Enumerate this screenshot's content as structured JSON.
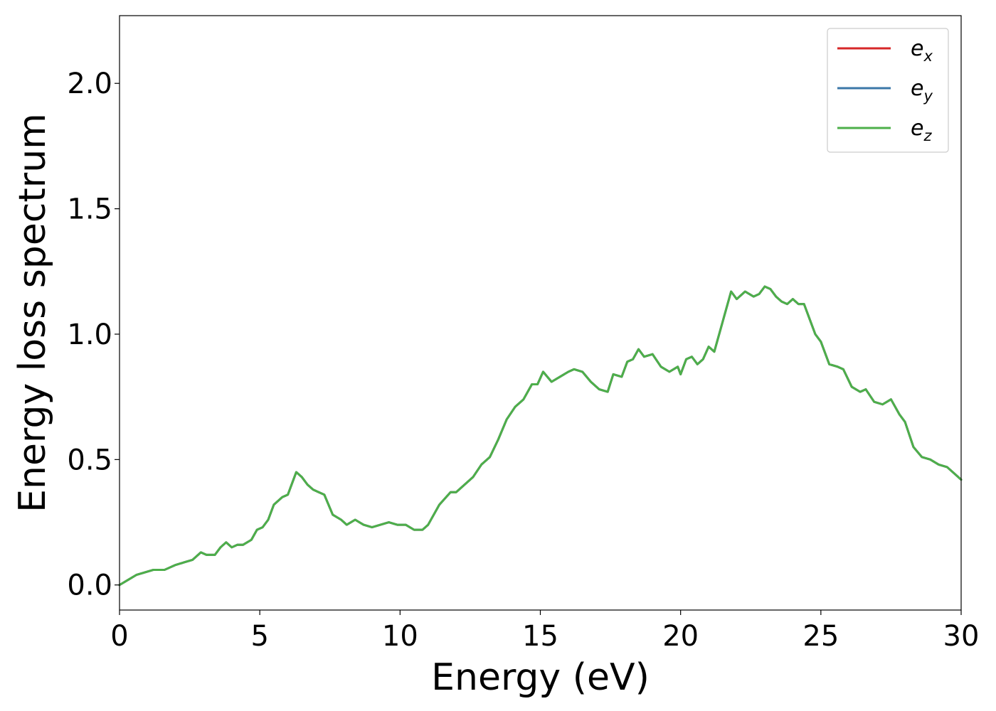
{
  "chart_data": {
    "type": "line",
    "title": "",
    "xlabel": "Energy (eV)",
    "ylabel": "Energy loss spectrum",
    "xlim": [
      0,
      30
    ],
    "ylim": [
      -0.1,
      2.27
    ],
    "xticks": [
      "0",
      "5",
      "10",
      "15",
      "20",
      "25",
      "30"
    ],
    "yticks": [
      "0.0",
      "0.5",
      "1.0",
      "1.5",
      "2.0"
    ],
    "grid": false,
    "legend_position": "top-right",
    "series": [
      {
        "name": "e_x",
        "label_main": "e",
        "label_sub": "x",
        "color": "#d62728",
        "x": [
          0,
          0.3,
          0.6,
          0.9,
          1.2,
          1.6,
          2.0,
          2.3,
          2.6,
          2.9,
          3.1,
          3.4,
          3.6,
          3.8,
          4.0,
          4.2,
          4.4,
          4.7,
          4.9,
          5.1,
          5.3,
          5.5,
          5.8,
          6.0,
          6.2,
          6.3,
          6.5,
          6.7,
          6.9,
          7.1,
          7.3,
          7.6,
          7.9,
          8.1,
          8.4,
          8.7,
          9.0,
          9.3,
          9.6,
          9.9,
          10.2,
          10.5,
          10.8,
          11.0,
          11.4,
          11.8,
          12.0,
          12.3,
          12.6,
          12.9,
          13.2,
          13.5,
          13.8,
          14.1,
          14.4,
          14.7,
          14.9,
          15.1,
          15.4,
          15.7,
          16.0,
          16.2,
          16.5,
          16.8,
          17.1,
          17.4,
          17.6,
          17.9,
          18.1,
          18.3,
          18.5,
          18.7,
          19.0,
          19.3,
          19.6,
          19.9,
          20.0,
          20.2,
          20.4,
          20.6,
          20.8,
          21.0,
          21.2,
          21.5,
          21.8,
          22.0,
          22.3,
          22.6,
          22.8,
          23.0,
          23.2,
          23.4,
          23.6,
          23.8,
          24.0,
          24.2,
          24.4,
          24.6,
          24.8,
          25.0,
          25.3,
          25.6,
          25.8,
          26.1,
          26.4,
          26.6,
          26.9,
          27.2,
          27.5,
          27.8,
          28.0,
          28.3,
          28.6,
          28.9,
          29.2,
          29.5,
          29.8,
          30.0
        ],
        "values": [
          0.0,
          0.02,
          0.04,
          0.05,
          0.06,
          0.06,
          0.08,
          0.09,
          0.1,
          0.13,
          0.12,
          0.12,
          0.15,
          0.17,
          0.15,
          0.16,
          0.16,
          0.18,
          0.22,
          0.23,
          0.26,
          0.32,
          0.35,
          0.36,
          0.42,
          0.45,
          0.43,
          0.4,
          0.38,
          0.37,
          0.36,
          0.28,
          0.26,
          0.24,
          0.26,
          0.24,
          0.23,
          0.24,
          0.25,
          0.24,
          0.24,
          0.22,
          0.22,
          0.24,
          0.32,
          0.37,
          0.37,
          0.4,
          0.43,
          0.48,
          0.51,
          0.58,
          0.66,
          0.71,
          0.74,
          0.8,
          0.8,
          0.85,
          0.81,
          0.83,
          0.85,
          0.86,
          0.85,
          0.81,
          0.78,
          0.77,
          0.84,
          0.83,
          0.89,
          0.9,
          0.94,
          0.91,
          0.92,
          0.87,
          0.85,
          0.87,
          0.84,
          0.9,
          0.91,
          0.88,
          0.9,
          0.95,
          0.93,
          1.05,
          1.17,
          1.14,
          1.17,
          1.15,
          1.16,
          1.19,
          1.18,
          1.15,
          1.13,
          1.12,
          1.14,
          1.12,
          1.12,
          1.06,
          1.0,
          0.97,
          0.88,
          0.87,
          0.86,
          0.79,
          0.77,
          0.78,
          0.73,
          0.72,
          0.74,
          0.68,
          0.65,
          0.55,
          0.51,
          0.5,
          0.48,
          0.47,
          0.44,
          0.42
        ]
      },
      {
        "name": "e_y",
        "label_main": "e",
        "label_sub": "y",
        "color": "#3b77a8",
        "x": [
          0,
          0.3,
          0.6,
          0.9,
          1.2,
          1.6,
          2.0,
          2.3,
          2.6,
          2.9,
          3.1,
          3.4,
          3.6,
          3.8,
          4.0,
          4.2,
          4.4,
          4.7,
          4.9,
          5.1,
          5.3,
          5.5,
          5.8,
          6.0,
          6.2,
          6.3,
          6.5,
          6.7,
          6.9,
          7.1,
          7.3,
          7.6,
          7.9,
          8.1,
          8.4,
          8.7,
          9.0,
          9.3,
          9.6,
          9.9,
          10.2,
          10.5,
          10.8,
          11.0,
          11.4,
          11.8,
          12.0,
          12.3,
          12.6,
          12.9,
          13.2,
          13.5,
          13.8,
          14.1,
          14.4,
          14.7,
          14.9,
          15.1,
          15.4,
          15.7,
          16.0,
          16.2,
          16.5,
          16.8,
          17.1,
          17.4,
          17.6,
          17.9,
          18.1,
          18.3,
          18.5,
          18.7,
          19.0,
          19.3,
          19.6,
          19.9,
          20.0,
          20.2,
          20.4,
          20.6,
          20.8,
          21.0,
          21.2,
          21.5,
          21.8,
          22.0,
          22.3,
          22.6,
          22.8,
          23.0,
          23.2,
          23.4,
          23.6,
          23.8,
          24.0,
          24.2,
          24.4,
          24.6,
          24.8,
          25.0,
          25.3,
          25.6,
          25.8,
          26.1,
          26.4,
          26.6,
          26.9,
          27.2,
          27.5,
          27.8,
          28.0,
          28.3,
          28.6,
          28.9,
          29.2,
          29.5,
          29.8,
          30.0
        ],
        "values": [
          0.0,
          0.02,
          0.04,
          0.05,
          0.06,
          0.06,
          0.08,
          0.09,
          0.1,
          0.13,
          0.12,
          0.12,
          0.15,
          0.17,
          0.15,
          0.16,
          0.16,
          0.18,
          0.22,
          0.23,
          0.26,
          0.32,
          0.35,
          0.36,
          0.42,
          0.45,
          0.43,
          0.4,
          0.38,
          0.37,
          0.36,
          0.28,
          0.26,
          0.24,
          0.26,
          0.24,
          0.23,
          0.24,
          0.25,
          0.24,
          0.24,
          0.22,
          0.22,
          0.24,
          0.32,
          0.37,
          0.37,
          0.4,
          0.43,
          0.48,
          0.51,
          0.58,
          0.66,
          0.71,
          0.74,
          0.8,
          0.8,
          0.85,
          0.81,
          0.83,
          0.85,
          0.86,
          0.85,
          0.81,
          0.78,
          0.77,
          0.84,
          0.83,
          0.89,
          0.9,
          0.94,
          0.91,
          0.92,
          0.87,
          0.85,
          0.87,
          0.84,
          0.9,
          0.91,
          0.88,
          0.9,
          0.95,
          0.93,
          1.05,
          1.17,
          1.14,
          1.17,
          1.15,
          1.16,
          1.19,
          1.18,
          1.15,
          1.13,
          1.12,
          1.14,
          1.12,
          1.12,
          1.06,
          1.0,
          0.97,
          0.88,
          0.87,
          0.86,
          0.79,
          0.77,
          0.78,
          0.73,
          0.72,
          0.74,
          0.68,
          0.65,
          0.55,
          0.51,
          0.5,
          0.48,
          0.47,
          0.44,
          0.42
        ]
      },
      {
        "name": "e_z",
        "label_main": "e",
        "label_sub": "z",
        "color": "#4daf4a",
        "x": [
          0,
          0.3,
          0.6,
          0.9,
          1.2,
          1.6,
          2.0,
          2.3,
          2.6,
          2.9,
          3.1,
          3.4,
          3.6,
          3.8,
          4.0,
          4.2,
          4.4,
          4.7,
          4.9,
          5.1,
          5.3,
          5.5,
          5.8,
          6.0,
          6.2,
          6.3,
          6.5,
          6.7,
          6.9,
          7.1,
          7.3,
          7.6,
          7.9,
          8.1,
          8.4,
          8.7,
          9.0,
          9.3,
          9.6,
          9.9,
          10.2,
          10.5,
          10.8,
          11.0,
          11.4,
          11.8,
          12.0,
          12.3,
          12.6,
          12.9,
          13.2,
          13.5,
          13.8,
          14.1,
          14.4,
          14.7,
          14.9,
          15.1,
          15.4,
          15.7,
          16.0,
          16.2,
          16.5,
          16.8,
          17.1,
          17.4,
          17.6,
          17.9,
          18.1,
          18.3,
          18.5,
          18.7,
          19.0,
          19.3,
          19.6,
          19.9,
          20.0,
          20.2,
          20.4,
          20.6,
          20.8,
          21.0,
          21.2,
          21.5,
          21.8,
          22.0,
          22.3,
          22.6,
          22.8,
          23.0,
          23.2,
          23.4,
          23.6,
          23.8,
          24.0,
          24.2,
          24.4,
          24.6,
          24.8,
          25.0,
          25.3,
          25.6,
          25.8,
          26.1,
          26.4,
          26.6,
          26.9,
          27.2,
          27.5,
          27.8,
          28.0,
          28.3,
          28.6,
          28.9,
          29.2,
          29.5,
          29.8,
          30.0
        ],
        "values": [
          0.0,
          0.02,
          0.04,
          0.05,
          0.06,
          0.06,
          0.08,
          0.09,
          0.1,
          0.13,
          0.12,
          0.12,
          0.15,
          0.17,
          0.15,
          0.16,
          0.16,
          0.18,
          0.22,
          0.23,
          0.26,
          0.32,
          0.35,
          0.36,
          0.42,
          0.45,
          0.43,
          0.4,
          0.38,
          0.37,
          0.36,
          0.28,
          0.26,
          0.24,
          0.26,
          0.24,
          0.23,
          0.24,
          0.25,
          0.24,
          0.24,
          0.22,
          0.22,
          0.24,
          0.32,
          0.37,
          0.37,
          0.4,
          0.43,
          0.48,
          0.51,
          0.58,
          0.66,
          0.71,
          0.74,
          0.8,
          0.8,
          0.85,
          0.81,
          0.83,
          0.85,
          0.86,
          0.85,
          0.81,
          0.78,
          0.77,
          0.84,
          0.83,
          0.89,
          0.9,
          0.94,
          0.91,
          0.92,
          0.87,
          0.85,
          0.87,
          0.84,
          0.9,
          0.91,
          0.88,
          0.9,
          0.95,
          0.93,
          1.05,
          1.17,
          1.14,
          1.17,
          1.15,
          1.16,
          1.19,
          1.18,
          1.15,
          1.13,
          1.12,
          1.14,
          1.12,
          1.12,
          1.06,
          1.0,
          0.97,
          0.88,
          0.87,
          0.86,
          0.79,
          0.77,
          0.78,
          0.73,
          0.72,
          0.74,
          0.68,
          0.65,
          0.55,
          0.51,
          0.5,
          0.48,
          0.47,
          0.44,
          0.42
        ]
      }
    ]
  }
}
